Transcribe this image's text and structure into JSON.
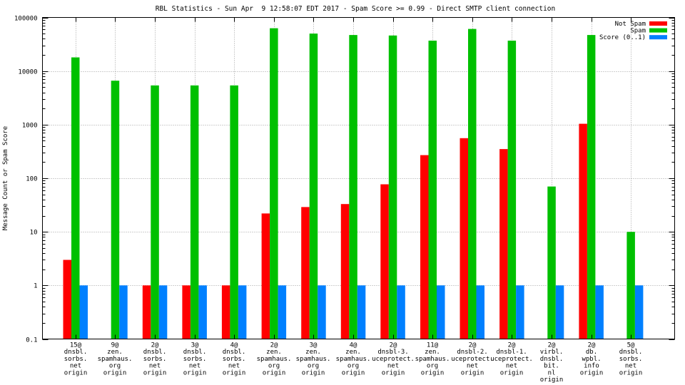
{
  "chart_data": {
    "type": "bar",
    "title": "RBL Statistics - Sun Apr  9 12:58:07 EDT 2017 - Spam Score >= 0.99 - Direct SMTP client connection",
    "xlabel": "",
    "ylabel": "Message Count or Spam Score",
    "yscale": "log",
    "ylim": [
      0.1,
      100000
    ],
    "yticks": [
      "0.1",
      "1",
      "10",
      "100",
      "1000",
      "10000",
      "100000"
    ],
    "grid": true,
    "legend_position": "top-right",
    "categories": [
      [
        "15@",
        "dnsbl.",
        "sorbs.",
        "net",
        "origin"
      ],
      [
        "9@",
        "zen.",
        "spamhaus.",
        "org",
        "origin"
      ],
      [
        "2@",
        "dnsbl.",
        "sorbs.",
        "net",
        "origin"
      ],
      [
        "3@",
        "dnsbl.",
        "sorbs.",
        "net",
        "origin"
      ],
      [
        "4@",
        "dnsbl.",
        "sorbs.",
        "net",
        "origin"
      ],
      [
        "2@",
        "zen.",
        "spamhaus.",
        "org",
        "origin"
      ],
      [
        "3@",
        "zen.",
        "spamhaus.",
        "org",
        "origin"
      ],
      [
        "4@",
        "zen.",
        "spamhaus.",
        "org",
        "origin"
      ],
      [
        "2@",
        "dnsbl-3.",
        "uceprotect.",
        "net",
        "origin"
      ],
      [
        "11@",
        "zen.",
        "spamhaus.",
        "org",
        "origin"
      ],
      [
        "2@",
        "dnsbl-2.",
        "uceprotect.",
        "net",
        "origin"
      ],
      [
        "2@",
        "dnsbl-1.",
        "uceprotect.",
        "net",
        "origin"
      ],
      [
        "2@",
        "virbl.",
        "dnsbl.",
        "bit.",
        "nl",
        "origin"
      ],
      [
        "2@",
        "db.",
        "wpbl.",
        "info",
        "origin"
      ],
      [
        "5@",
        "dnsbl.",
        "sorbs.",
        "net",
        "origin"
      ]
    ],
    "series": [
      {
        "name": "Not Spam",
        "color": "#ff0000",
        "values": [
          3,
          null,
          1,
          1,
          1,
          22,
          29,
          33,
          77,
          270,
          560,
          350,
          null,
          1040,
          null
        ]
      },
      {
        "name": "Spam",
        "color": "#00c000",
        "values": [
          18000,
          6600,
          5400,
          5400,
          5400,
          63000,
          50000,
          47000,
          46000,
          37000,
          61000,
          37000,
          70,
          47000,
          10
        ]
      },
      {
        "name": "Score (0..1)",
        "color": "#0080ff",
        "values": [
          1,
          1,
          1,
          1,
          1,
          1,
          1,
          1,
          1,
          1,
          1,
          1,
          1,
          1,
          1
        ]
      }
    ]
  }
}
